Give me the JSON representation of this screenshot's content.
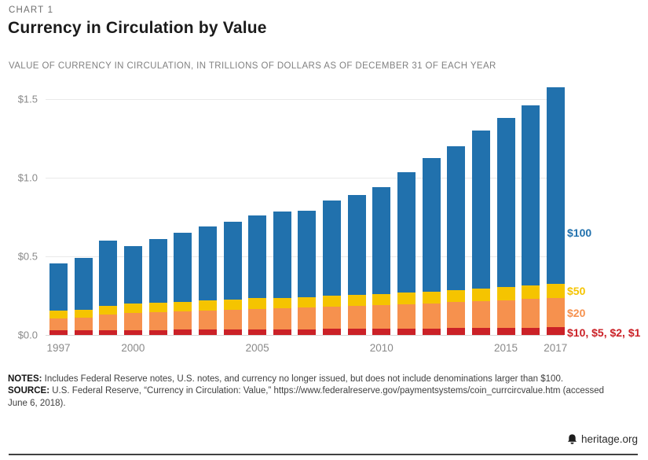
{
  "page": {
    "kicker": "CHART 1",
    "title": "Currency in Circulation by Value",
    "subtitle": "VALUE OF CURRENCY IN CIRCULATION, IN TRILLIONS OF DOLLARS AS OF DECEMBER 31 OF EACH YEAR"
  },
  "chart_data": {
    "type": "bar",
    "stacked": true,
    "title": "Currency in Circulation by Value",
    "ylabel": "Trillions of dollars",
    "ylim": [
      0,
      1.6
    ],
    "grid": true,
    "legend_position": "right",
    "categories": [
      "1997",
      "1998",
      "1999",
      "2000",
      "2001",
      "2002",
      "2003",
      "2004",
      "2005",
      "2006",
      "2007",
      "2008",
      "2009",
      "2010",
      "2011",
      "2012",
      "2013",
      "2014",
      "2015",
      "2016",
      "2017"
    ],
    "series": [
      {
        "name": "$10, $5, $2, $1",
        "color": "#CB2127",
        "values": [
          0.028,
          0.029,
          0.031,
          0.032,
          0.032,
          0.033,
          0.034,
          0.035,
          0.036,
          0.036,
          0.037,
          0.038,
          0.038,
          0.04,
          0.041,
          0.042,
          0.043,
          0.044,
          0.045,
          0.046,
          0.049
        ]
      },
      {
        "name": "$20",
        "color": "#F6914E",
        "values": [
          0.078,
          0.081,
          0.098,
          0.108,
          0.111,
          0.116,
          0.121,
          0.127,
          0.131,
          0.134,
          0.136,
          0.142,
          0.146,
          0.149,
          0.155,
          0.16,
          0.165,
          0.171,
          0.177,
          0.182,
          0.188
        ]
      },
      {
        "name": "$50",
        "color": "#F5C400",
        "values": [
          0.047,
          0.048,
          0.058,
          0.061,
          0.06,
          0.061,
          0.063,
          0.064,
          0.066,
          0.067,
          0.066,
          0.068,
          0.069,
          0.07,
          0.072,
          0.075,
          0.077,
          0.08,
          0.083,
          0.085,
          0.088
        ]
      },
      {
        "name": "$100",
        "color": "#2171AD",
        "values": [
          0.302,
          0.332,
          0.413,
          0.364,
          0.409,
          0.442,
          0.47,
          0.494,
          0.527,
          0.546,
          0.553,
          0.605,
          0.636,
          0.681,
          0.765,
          0.85,
          0.915,
          1.005,
          1.075,
          1.147,
          1.252
        ]
      }
    ],
    "totals": [
      0.455,
      0.49,
      0.6,
      0.565,
      0.612,
      0.652,
      0.688,
      0.72,
      0.76,
      0.783,
      0.792,
      0.853,
      0.889,
      0.94,
      1.033,
      1.127,
      1.2,
      1.3,
      1.38,
      1.46,
      1.577
    ],
    "y_ticks": [
      {
        "value": 0,
        "label": "$0.0"
      },
      {
        "value": 0.5,
        "label": "$0.5"
      },
      {
        "value": 1.0,
        "label": "$1.0"
      },
      {
        "value": 1.5,
        "label": "$1.5"
      }
    ],
    "x_ticks": [
      {
        "index": 0,
        "label": "1997"
      },
      {
        "index": 3,
        "label": "2000"
      },
      {
        "index": 8,
        "label": "2005"
      },
      {
        "index": 13,
        "label": "2010"
      },
      {
        "index": 18,
        "label": "2015"
      },
      {
        "index": 20,
        "label": "2017"
      }
    ]
  },
  "notes": {
    "notes_label": "NOTES:",
    "notes_text": "Includes Federal Reserve notes, U.S. notes, and currency no longer issued, but does not include denominations larger than $100.",
    "source_label": "SOURCE:",
    "source_text": "U.S. Federal Reserve, “Currency in Circulation: Value,” https://www.federalreserve.gov/paymentsystems/coin_currcircvalue.htm (accessed June 6, 2018)."
  },
  "footer": {
    "brand": "heritage.org"
  }
}
